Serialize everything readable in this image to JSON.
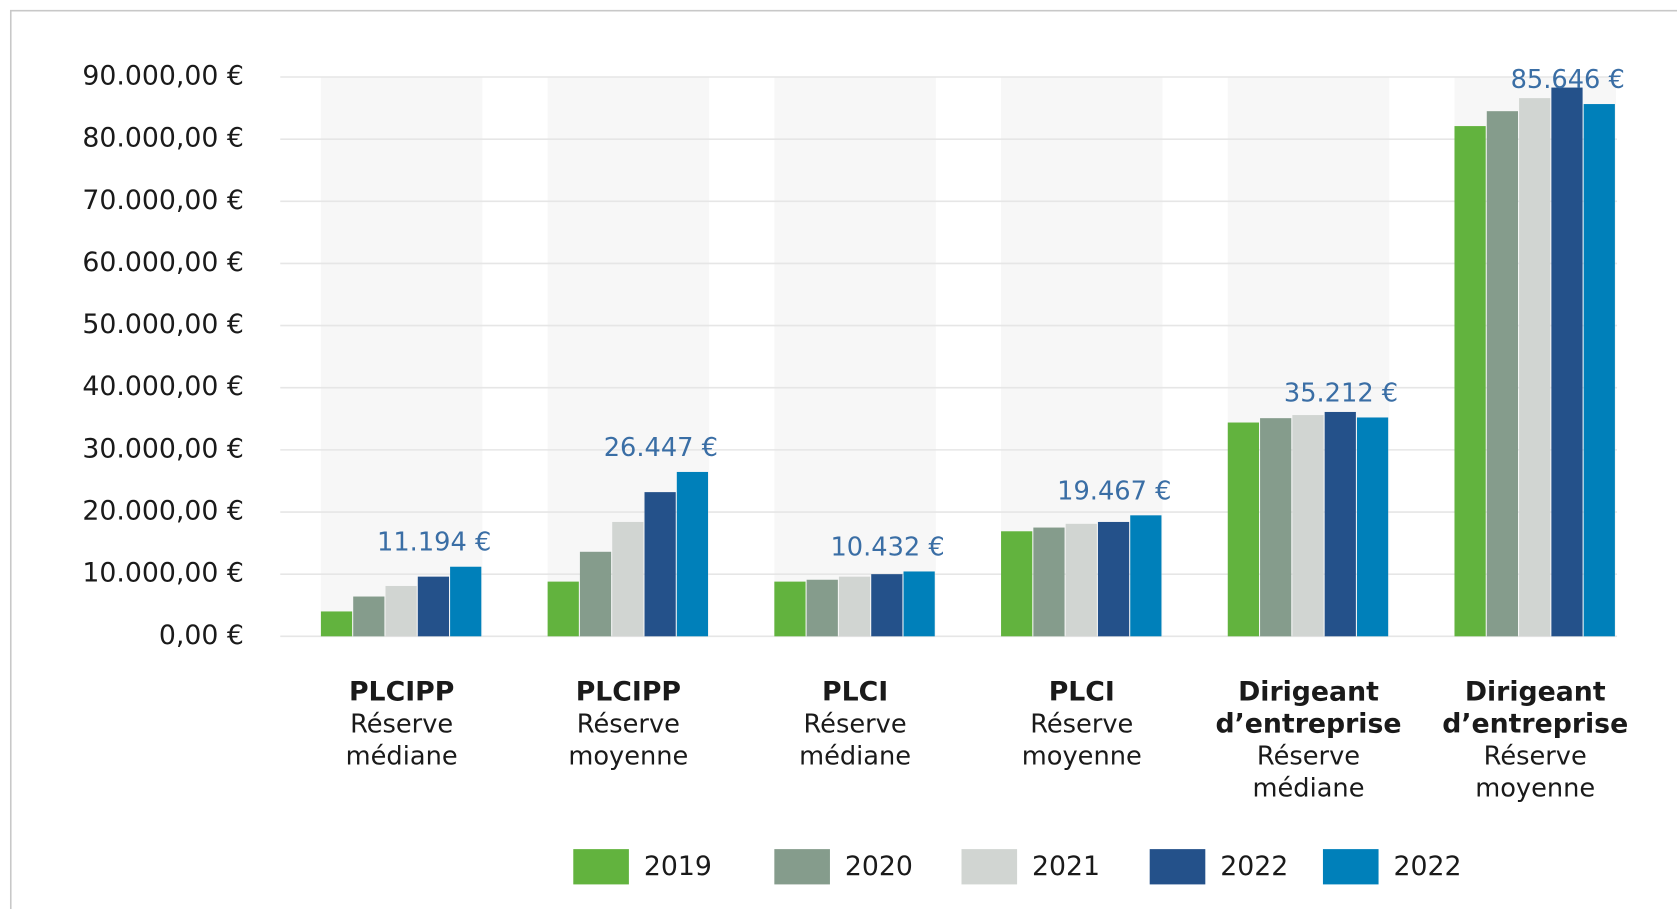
{
  "chart_data": {
    "type": "bar",
    "categories": [
      {
        "name": [
          "PLCIPP"
        ],
        "detail": [
          "Réserve",
          "médiane"
        ]
      },
      {
        "name": [
          "PLCIPP"
        ],
        "detail": [
          "Réserve",
          "moyenne"
        ]
      },
      {
        "name": [
          "PLCI"
        ],
        "detail": [
          "Réserve",
          "médiane"
        ]
      },
      {
        "name": [
          "PLCI"
        ],
        "detail": [
          "Réserve",
          "moyenne"
        ]
      },
      {
        "name": [
          "Dirigeant",
          "d’entreprise"
        ],
        "detail": [
          "Réserve",
          "médiane"
        ]
      },
      {
        "name": [
          "Dirigeant",
          "d’entreprise"
        ],
        "detail": [
          "Réserve",
          "moyenne"
        ]
      }
    ],
    "series": [
      {
        "name": "2019",
        "color": "#62b33e",
        "values": [
          4000,
          8800,
          8800,
          16900,
          34400,
          82100
        ]
      },
      {
        "name": "2020",
        "color": "#859c8c",
        "values": [
          6400,
          13600,
          9100,
          17500,
          35100,
          84500
        ]
      },
      {
        "name": "2021",
        "color": "#d1d5d2",
        "values": [
          8100,
          18400,
          9600,
          18100,
          35600,
          86600
        ]
      },
      {
        "name": "2022",
        "color": "#24518a",
        "values": [
          9600,
          23200,
          10000,
          18400,
          36100,
          88300
        ]
      },
      {
        "name": "2022",
        "color": "#0080ba",
        "values": [
          11194,
          26447,
          10432,
          19467,
          35212,
          85646
        ],
        "value_labels": [
          "11.194 €",
          "26.447 €",
          "10.432 €",
          "19.467 €",
          "35.212 €",
          "85.646 €"
        ]
      }
    ],
    "ylim": [
      0,
      90000
    ],
    "yticks": [
      {
        "value": 0,
        "label": "0,00 €"
      },
      {
        "value": 10000,
        "label": "10.000,00 €"
      },
      {
        "value": 20000,
        "label": "20.000,00 €"
      },
      {
        "value": 30000,
        "label": "30.000,00 €"
      },
      {
        "value": 40000,
        "label": "40.000,00 €"
      },
      {
        "value": 50000,
        "label": "50.000,00 €"
      },
      {
        "value": 60000,
        "label": "60.000,00 €"
      },
      {
        "value": 70000,
        "label": "70.000,00 €"
      },
      {
        "value": 80000,
        "label": "80.000,00 €"
      },
      {
        "value": 90000,
        "label": "90.000,00 €"
      }
    ],
    "grid": true,
    "legend": "bottom"
  }
}
